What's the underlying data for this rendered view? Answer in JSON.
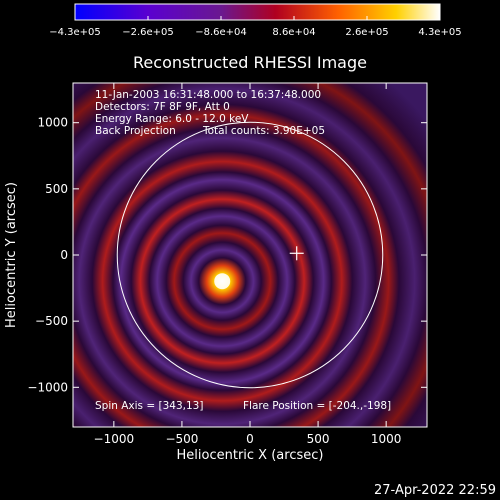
{
  "chart_data": {
    "type": "heatmap",
    "title": "Reconstructed RHESSI Image",
    "xlabel": "Heliocentric X (arcsec)",
    "ylabel": "Heliocentric Y (arcsec)",
    "xlim": [
      -1300,
      1300
    ],
    "ylim": [
      -1300,
      1300
    ],
    "x_ticks": [
      -1000,
      -500,
      0,
      500,
      1000
    ],
    "x_tick_labels": [
      "−1000",
      "−500",
      "0",
      "500",
      "1000"
    ],
    "y_ticks": [
      1000,
      500,
      0,
      -500,
      -1000
    ],
    "y_tick_labels": [
      "1000",
      "500",
      "0",
      "−500",
      "−1000"
    ],
    "colorbar": {
      "range": [
        -430000,
        430000
      ],
      "tick_labels": [
        "−4.3e+05",
        "−2.6e+05",
        "−8.6e+04",
        "8.6e+04",
        "2.6e+05",
        "4.3e+05"
      ],
      "colors": [
        "#0000ff",
        "#5a00d0",
        "#7a1fa0",
        "#b00020",
        "#ff6000",
        "#ffd000",
        "#ffffff"
      ]
    },
    "annotations": {
      "time_range": "11-Jan-2003 16:31:48.000 to 16:37:48.000",
      "detectors": "Detectors: 7F 8F 9F, Att 0",
      "energy_range": "Energy Range: 6.0 - 12.0 keV",
      "method": "Back Projection",
      "total_counts": "Total counts: 3.90E+05",
      "spin_axis": "Spin Axis = [343,13]",
      "flare_position": "Flare Position = [-204.,-198]"
    },
    "flare_position": [
      -204,
      -198
    ],
    "spin_axis": [
      343,
      13
    ],
    "solar_limb_radius": 975
  },
  "footer": {
    "date": "27-Apr-2022 22:59"
  }
}
